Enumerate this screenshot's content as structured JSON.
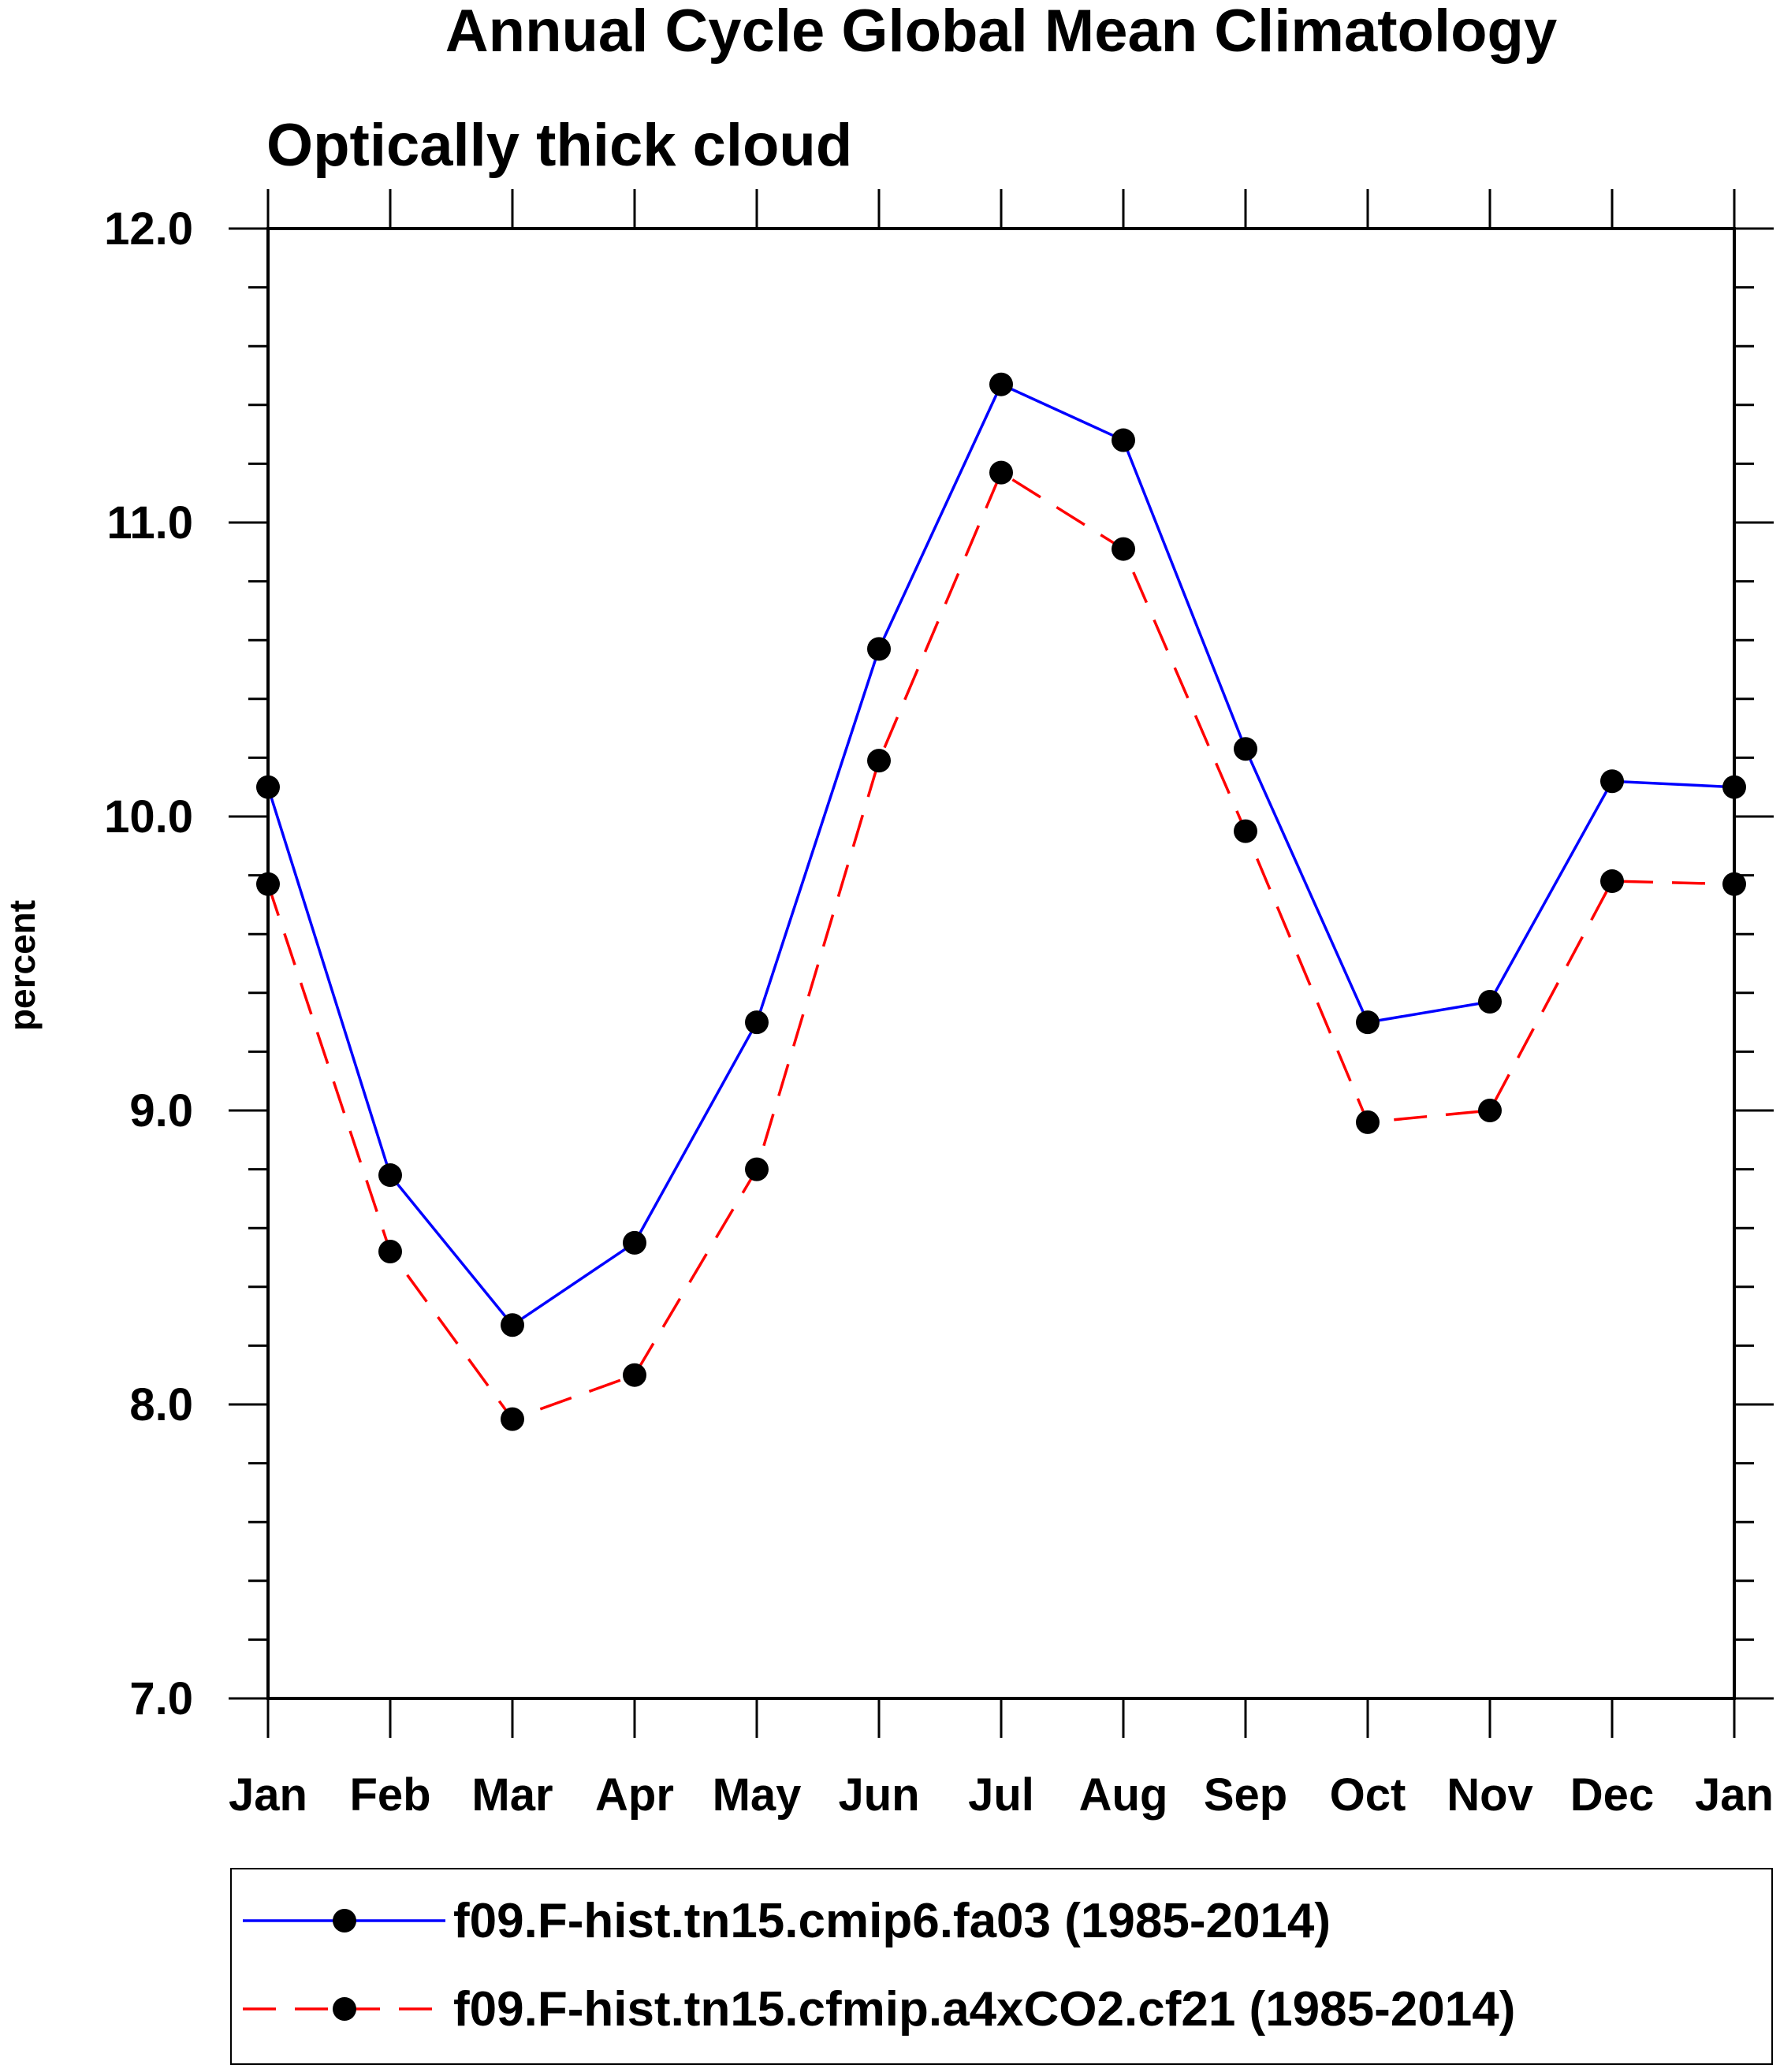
{
  "chart_data": {
    "type": "line",
    "title": "Annual Cycle Global Mean Climatology",
    "subtitle": "Optically thick cloud",
    "xlabel": "",
    "ylabel": "percent",
    "categories": [
      "Jan",
      "Feb",
      "Mar",
      "Apr",
      "May",
      "Jun",
      "Jul",
      "Aug",
      "Sep",
      "Oct",
      "Nov",
      "Dec",
      "Jan"
    ],
    "ylim": [
      7.0,
      12.0
    ],
    "yticks": [
      "7.0",
      "8.0",
      "9.0",
      "10.0",
      "11.0",
      "12.0"
    ],
    "grid": false,
    "legend_position": "bottom",
    "series": [
      {
        "name": "f09.F-hist.tn15.cmip6.fa03 (1985-2014)",
        "color": "#0000ff",
        "dash": "solid",
        "marker_color": "#000000",
        "values": [
          10.1,
          8.78,
          8.27,
          8.55,
          9.3,
          10.57,
          11.47,
          11.28,
          10.23,
          9.3,
          9.37,
          10.12,
          10.1
        ]
      },
      {
        "name": "f09.F-hist.tn15.cfmip.a4xCO2.cf21 (1985-2014)",
        "color": "#ff0000",
        "dash": "dashed",
        "marker_color": "#000000",
        "values": [
          9.77,
          8.52,
          7.95,
          8.1,
          8.8,
          10.19,
          11.17,
          10.91,
          9.95,
          8.96,
          9.0,
          9.78,
          9.77
        ]
      }
    ]
  }
}
